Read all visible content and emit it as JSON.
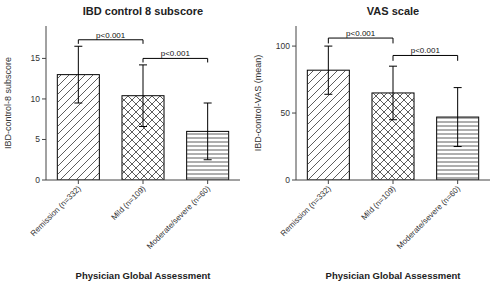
{
  "chart_data": [
    {
      "type": "bar",
      "title": "IBD control 8 subscore",
      "categories": [
        "Remission (n=332)",
        "Mild (n=109)",
        "Moderate/severe (n=60)"
      ],
      "values": [
        13.0,
        10.4,
        6.0
      ],
      "errors": [
        3.5,
        3.8,
        3.5
      ],
      "colors": [
        "white",
        "white",
        "white"
      ],
      "ylabel": "IBD-control-8 subscore",
      "xlabel": "Physician Global Assessment",
      "ylim": [
        0,
        19
      ],
      "yticks": [
        0,
        5,
        10,
        15
      ],
      "grid": false,
      "annotations": [
        {
          "text": "p<0.001",
          "start": "Remission (n=332)",
          "end": "Mild (n=109)",
          "y_low": 16.8,
          "y_high": 17.3
        },
        {
          "text": "p<0.001",
          "start": "Mild (n=109)",
          "end": "Moderate/severe (n=60)",
          "y_low": 14.5,
          "y_high": 15.0
        }
      ]
    },
    {
      "type": "bar",
      "title": "VAS scale",
      "categories": [
        "Remission (n=332)",
        "Mild (n=109)",
        "Moderate/severe (n=60)"
      ],
      "values": [
        82.0,
        65.0,
        47.0
      ],
      "errors": [
        18.0,
        20.0,
        22.0
      ],
      "colors": [
        "white",
        "white",
        "white"
      ],
      "ylabel": "IBD-control-VAS (mean)",
      "xlabel": "Physician Global Assessment",
      "ylim": [
        0,
        115
      ],
      "yticks": [
        0,
        50,
        100
      ],
      "grid": false,
      "annotations": [
        {
          "text": "p<0.001",
          "start": "Remission (n=332)",
          "end": "Mild (n=109)",
          "y_low": 102,
          "y_high": 106
        },
        {
          "text": "p<0.001",
          "start": "Mild (n=109)",
          "end": "Moderate/severe (n=60)",
          "y_low": 89,
          "y_high": 93
        }
      ]
    }
  ]
}
